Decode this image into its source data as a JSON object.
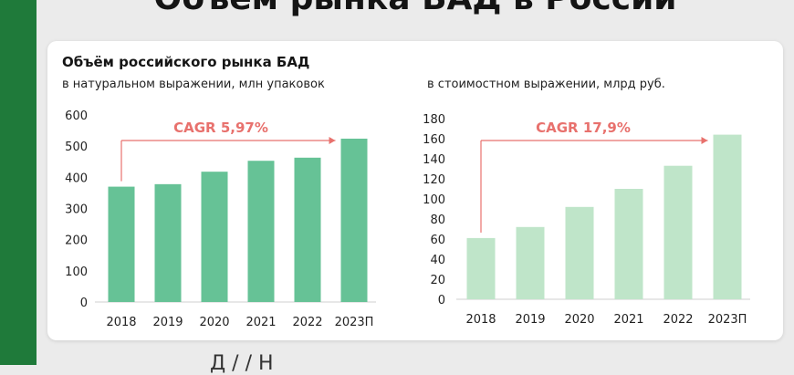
{
  "page": {
    "title": "Объем рынка БАД в России",
    "bottom_text": "Д                    /  /          Н"
  },
  "card": {
    "title": "Объём российского рынка БАД"
  },
  "colors": {
    "sidebar": "#1f7a3a",
    "left_bar": "#66c296",
    "right_bar": "#bfe5c9",
    "cagr": "#e8716d"
  },
  "chart_data": [
    {
      "type": "bar",
      "subtitle": "в натуральном выражении, млн упаковок",
      "categories": [
        "2018",
        "2019",
        "2020",
        "2021",
        "2022",
        "2023П"
      ],
      "values": [
        370,
        378,
        418,
        453,
        463,
        524
      ],
      "ylim": [
        0,
        600
      ],
      "yticks": [
        0,
        100,
        200,
        300,
        400,
        500,
        600
      ],
      "annotation": "CAGR 5,97%",
      "grid": false
    },
    {
      "type": "bar",
      "subtitle": "в стоимостном выражении, млрд руб.",
      "categories": [
        "2018",
        "2019",
        "2020",
        "2021",
        "2022",
        "2023П"
      ],
      "values": [
        61,
        72,
        92,
        110,
        133,
        164
      ],
      "ylim": [
        0,
        180
      ],
      "yticks": [
        0,
        20,
        40,
        60,
        80,
        100,
        120,
        140,
        160,
        180
      ],
      "annotation": "CAGR 17,9%",
      "grid": false
    }
  ]
}
